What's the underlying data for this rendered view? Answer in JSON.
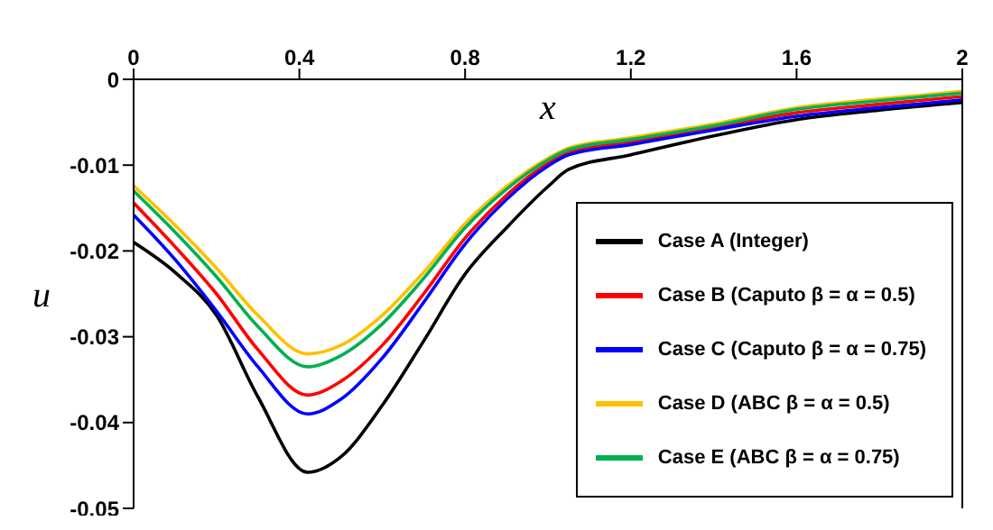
{
  "chart_data": {
    "type": "line",
    "xlabel": "x",
    "ylabel": "u",
    "x": [
      0,
      0.1,
      0.2,
      0.3,
      0.42,
      0.5,
      0.6,
      0.7,
      0.8,
      0.9,
      1.0,
      1.05,
      1.2,
      1.4,
      1.6,
      1.8,
      2.0
    ],
    "series": [
      {
        "name": "Case A (Integer)",
        "color": "#000000",
        "values": [
          -0.019,
          -0.0225,
          -0.0275,
          -0.037,
          -0.0458,
          -0.044,
          -0.038,
          -0.0305,
          -0.0227,
          -0.0173,
          -0.0125,
          -0.0105,
          -0.0088,
          -0.0066,
          -0.0047,
          -0.0036,
          -0.0027
        ]
      },
      {
        "name": "Case B (Caputo β = α = 0.5)",
        "color": "#ff0000",
        "values": [
          -0.0144,
          -0.0195,
          -0.025,
          -0.0315,
          -0.0368,
          -0.0352,
          -0.031,
          -0.025,
          -0.0185,
          -0.0135,
          -0.0098,
          -0.0085,
          -0.0073,
          -0.0056,
          -0.0039,
          -0.0029,
          -0.002
        ]
      },
      {
        "name": "Case C (Caputo β = α = 0.75)",
        "color": "#0000ff",
        "values": [
          -0.0158,
          -0.021,
          -0.027,
          -0.0335,
          -0.039,
          -0.0373,
          -0.0325,
          -0.026,
          -0.0192,
          -0.014,
          -0.0101,
          -0.0088,
          -0.0076,
          -0.0059,
          -0.0043,
          -0.0033,
          -0.0024
        ]
      },
      {
        "name": "Case D (ABC β = α = 0.5)",
        "color": "#ffc000",
        "values": [
          -0.0124,
          -0.017,
          -0.022,
          -0.0275,
          -0.032,
          -0.031,
          -0.0275,
          -0.0225,
          -0.0168,
          -0.0125,
          -0.0092,
          -0.008,
          -0.0068,
          -0.0052,
          -0.0033,
          -0.0023,
          -0.0014
        ]
      },
      {
        "name": "Case E (ABC β = α = 0.75)",
        "color": "#00b050",
        "values": [
          -0.013,
          -0.0178,
          -0.023,
          -0.0288,
          -0.0335,
          -0.0322,
          -0.0285,
          -0.0232,
          -0.0173,
          -0.0128,
          -0.0094,
          -0.0082,
          -0.007,
          -0.0054,
          -0.0035,
          -0.0025,
          -0.0016
        ]
      }
    ],
    "xlim": [
      0,
      2
    ],
    "xticks": [
      0,
      0.4,
      0.8,
      1.2,
      1.6,
      2
    ],
    "ylim": [
      -0.05,
      0
    ],
    "yticks": [
      -0.05,
      -0.04,
      -0.03,
      -0.02,
      -0.01,
      0
    ],
    "legend": "bottom right",
    "marker": "none",
    "line_style": "solid",
    "grid": false
  }
}
